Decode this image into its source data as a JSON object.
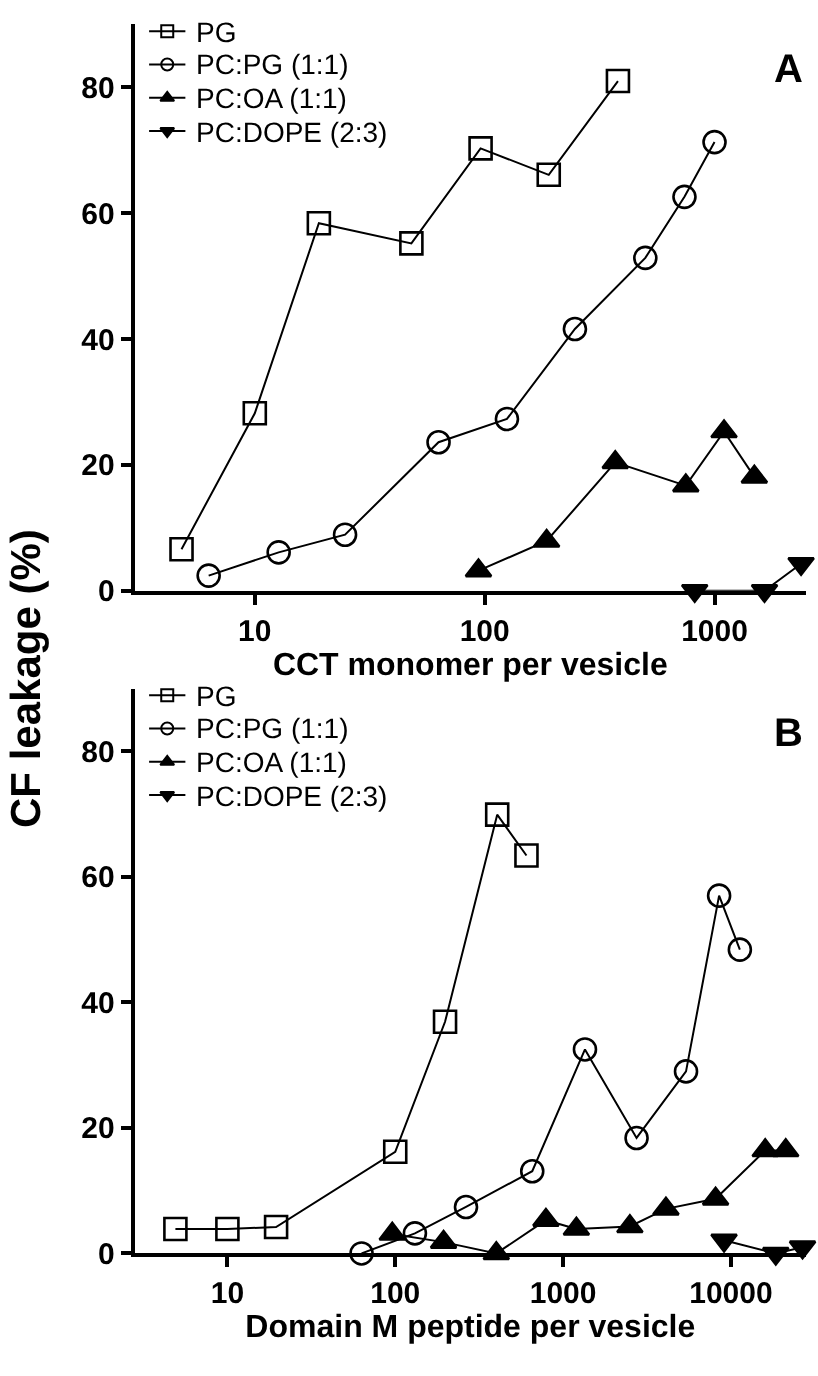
{
  "chart_data": [
    {
      "type": "line",
      "ylabel": "CF leakage (%)",
      "xlabel": "CCT monomer per vesicle",
      "annotations": [
        "A"
      ],
      "log": "x",
      "legend": "top left",
      "line_style": "solid",
      "xlim": [
        3,
        2500
      ],
      "xticks": [
        10,
        100,
        1000
      ],
      "ylim": [
        0,
        90
      ],
      "yticks": [
        0,
        20,
        40,
        60,
        80
      ],
      "series": [
        {
          "name": "PG",
          "color": "#000000",
          "marker": "square",
          "x": [
            4.8,
            10,
            19,
            48,
            96,
            190,
            380
          ],
          "values": [
            6.6,
            28.2,
            58.4,
            55.2,
            70.3,
            66.1,
            81
          ]
        },
        {
          "name": "PC:PG (1:1)",
          "color": "#000000",
          "marker": "circle",
          "x": [
            6.3,
            12.7,
            24.7,
            63,
            125,
            247,
            500,
            740,
            1000
          ],
          "values": [
            2.4,
            6.1,
            8.9,
            23.6,
            27.3,
            41.6,
            52.9,
            62.6,
            71.3
          ]
        },
        {
          "name": "PC:OA (1:1)",
          "color": "#000000",
          "marker": "triangle",
          "x": [
            94,
            186,
            370,
            750,
            1100,
            1490
          ],
          "values": [
            3.2,
            7.9,
            20.4,
            16.7,
            25.3,
            18.1
          ]
        },
        {
          "name": "PC:DOPE (2:3)",
          "color": "#000000",
          "marker": "triangle-down",
          "x": [
            820,
            1650,
            2380
          ],
          "values": [
            0,
            0,
            4.3
          ]
        }
      ]
    },
    {
      "type": "line",
      "xlabel": "Domain M peptide per vesicle",
      "annotations": [
        "B"
      ],
      "log": "x",
      "legend": "top left",
      "line_style": "solid",
      "xlim": [
        2.8,
        28000
      ],
      "xticks": [
        10,
        100,
        1000,
        10000
      ],
      "ylim": [
        0,
        90
      ],
      "yticks": [
        0,
        20,
        40,
        60,
        80
      ],
      "series": [
        {
          "name": "PG",
          "color": "#000000",
          "marker": "square",
          "x": [
            4.9,
            10,
            19.5,
            100,
            198,
            405,
            605
          ],
          "values": [
            3.9,
            3.9,
            4.2,
            16.2,
            36.9,
            69.9,
            63.4
          ]
        },
        {
          "name": "PC:PG (1:1)",
          "color": "#000000",
          "marker": "circle",
          "x": [
            63,
            131,
            264,
            655,
            1350,
            2740,
            5400,
            8500,
            11300
          ],
          "values": [
            0,
            3.2,
            7.4,
            13.1,
            32.5,
            18.4,
            29.0,
            57.0,
            48.4
          ]
        },
        {
          "name": "PC:OA (1:1)",
          "color": "#000000",
          "marker": "triangle",
          "x": [
            96,
            194,
            400,
            790,
            1200,
            2500,
            4100,
            8100,
            16000,
            21200
          ],
          "values": [
            3.1,
            1.8,
            0,
            5.3,
            3.9,
            4.3,
            7.1,
            8.7,
            16.4,
            16.4
          ]
        },
        {
          "name": "PC:DOPE (2:3)",
          "color": "#000000",
          "marker": "triangle-down",
          "x": [
            9100,
            18500,
            26700
          ],
          "values": [
            2.1,
            0,
            1.0
          ]
        }
      ]
    }
  ]
}
